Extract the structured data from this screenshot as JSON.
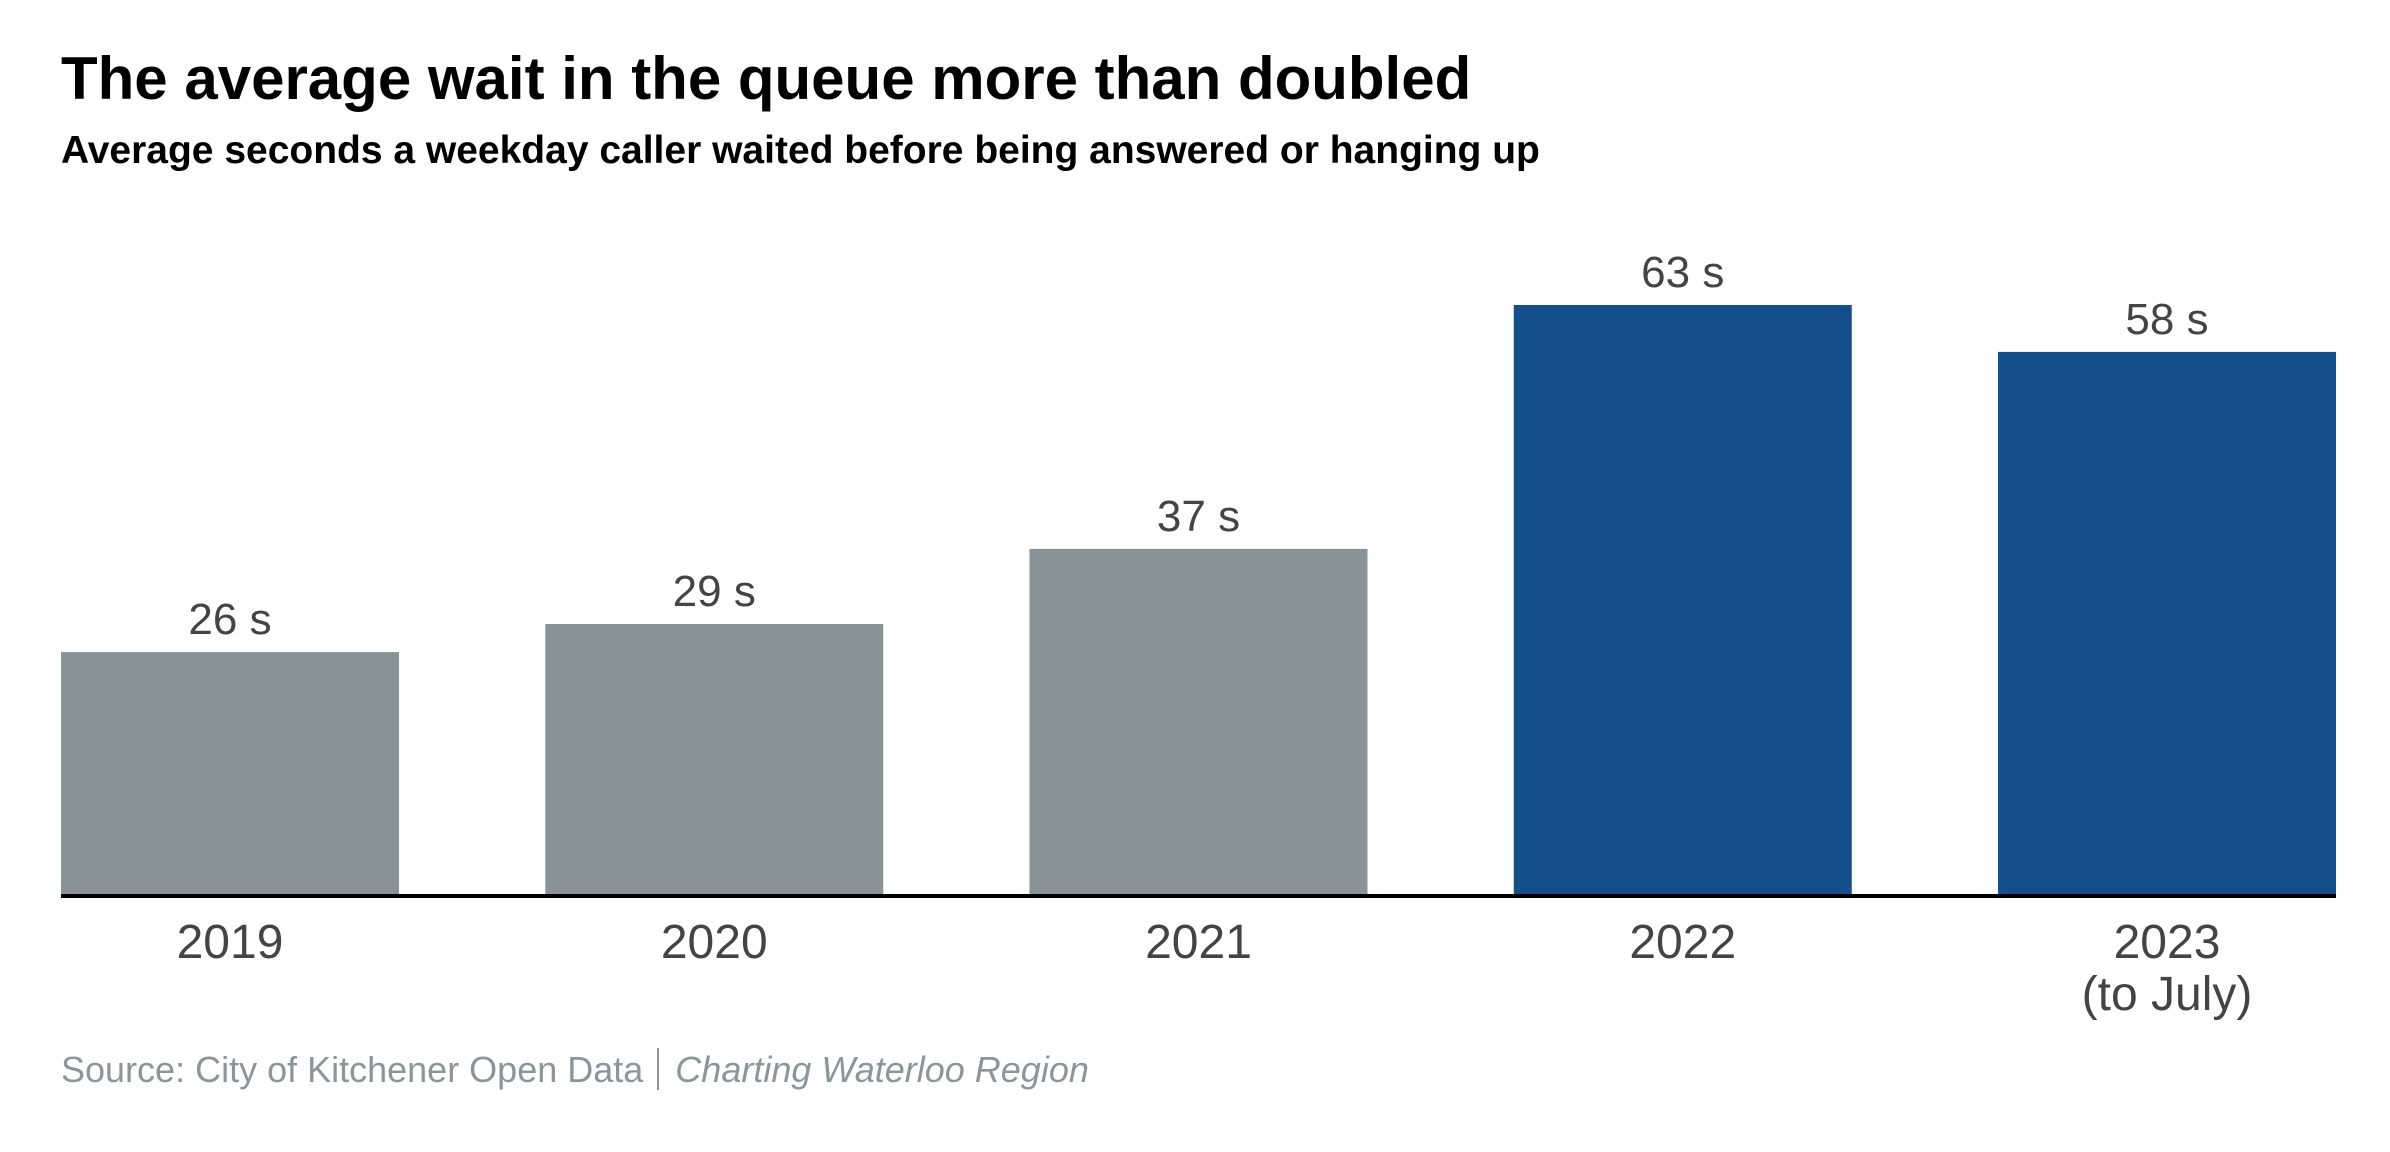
{
  "title": "The average wait in the queue more than doubled",
  "subtitle": "Average seconds a weekday caller waited before being answered or hanging up",
  "source": {
    "text": "Source: City of Kitchener Open Data",
    "credit": "Charting Waterloo Region"
  },
  "colors": {
    "earlier": "#879397",
    "recent": "#134f8a",
    "axis": "#000000",
    "label": "#444444",
    "source": "#8a959c"
  },
  "chart_data": {
    "type": "bar",
    "title": "The average wait in the queue more than doubled",
    "subtitle": "Average seconds a weekday caller waited before being answered or hanging up",
    "xlabel": "",
    "ylabel": "",
    "categories": [
      "2019",
      "2020",
      "2021",
      "2022",
      "2023\n(to July)"
    ],
    "values": [
      26,
      29,
      37,
      63,
      58
    ],
    "data_labels": [
      "26 s",
      "29 s",
      "37 s",
      "63 s",
      "58 s"
    ],
    "highlighted": [
      false,
      false,
      false,
      true,
      true
    ],
    "ylim": [
      0,
      63
    ],
    "grid": false,
    "legend": "none"
  }
}
